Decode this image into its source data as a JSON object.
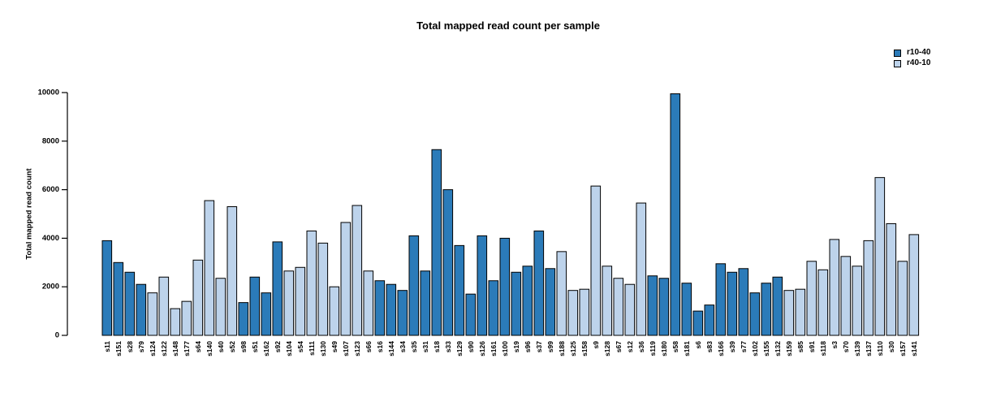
{
  "chart_data": {
    "type": "bar",
    "title": "Total mapped read count per sample",
    "xlabel": "",
    "ylabel": "Total mapped read count",
    "ylim": [
      0,
      10000
    ],
    "yticks": [
      0,
      2000,
      4000,
      6000,
      8000,
      10000
    ],
    "grid": false,
    "legend_position": "top-right",
    "bar_border_color": "#000000",
    "legend": [
      {
        "label": "r10-40",
        "color": "#2b7bb9"
      },
      {
        "label": "r40-10",
        "color": "#bdd3eb"
      }
    ],
    "samples": [
      {
        "label": "s11",
        "group": "r10-40",
        "value": 3900
      },
      {
        "label": "s151",
        "group": "r10-40",
        "value": 3000
      },
      {
        "label": "s28",
        "group": "r10-40",
        "value": 2600
      },
      {
        "label": "s79",
        "group": "r10-40",
        "value": 2100
      },
      {
        "label": "s124",
        "group": "r40-10",
        "value": 1750
      },
      {
        "label": "s122",
        "group": "r40-10",
        "value": 2400
      },
      {
        "label": "s148",
        "group": "r40-10",
        "value": 1100
      },
      {
        "label": "s177",
        "group": "r40-10",
        "value": 1400
      },
      {
        "label": "s64",
        "group": "r40-10",
        "value": 3100
      },
      {
        "label": "s140",
        "group": "r40-10",
        "value": 5550
      },
      {
        "label": "s40",
        "group": "r40-10",
        "value": 2350
      },
      {
        "label": "s52",
        "group": "r40-10",
        "value": 5300
      },
      {
        "label": "s98",
        "group": "r10-40",
        "value": 1350
      },
      {
        "label": "s51",
        "group": "r10-40",
        "value": 2400
      },
      {
        "label": "s162",
        "group": "r10-40",
        "value": 1750
      },
      {
        "label": "s92",
        "group": "r10-40",
        "value": 3850
      },
      {
        "label": "s104",
        "group": "r40-10",
        "value": 2650
      },
      {
        "label": "s54",
        "group": "r40-10",
        "value": 2800
      },
      {
        "label": "s111",
        "group": "r40-10",
        "value": 4300
      },
      {
        "label": "s130",
        "group": "r40-10",
        "value": 3800
      },
      {
        "label": "s49",
        "group": "r40-10",
        "value": 2000
      },
      {
        "label": "s107",
        "group": "r40-10",
        "value": 4650
      },
      {
        "label": "s123",
        "group": "r40-10",
        "value": 5350
      },
      {
        "label": "s66",
        "group": "r40-10",
        "value": 2650
      },
      {
        "label": "s16",
        "group": "r10-40",
        "value": 2250
      },
      {
        "label": "s144",
        "group": "r10-40",
        "value": 2100
      },
      {
        "label": "s34",
        "group": "r10-40",
        "value": 1850
      },
      {
        "label": "s35",
        "group": "r10-40",
        "value": 4100
      },
      {
        "label": "s31",
        "group": "r10-40",
        "value": 2650
      },
      {
        "label": "s18",
        "group": "r10-40",
        "value": 7650
      },
      {
        "label": "s33",
        "group": "r10-40",
        "value": 6000
      },
      {
        "label": "s129",
        "group": "r10-40",
        "value": 3700
      },
      {
        "label": "s90",
        "group": "r10-40",
        "value": 1700
      },
      {
        "label": "s126",
        "group": "r10-40",
        "value": 4100
      },
      {
        "label": "s161",
        "group": "r10-40",
        "value": 2250
      },
      {
        "label": "s100",
        "group": "r10-40",
        "value": 4000
      },
      {
        "label": "s19",
        "group": "r10-40",
        "value": 2600
      },
      {
        "label": "s96",
        "group": "r10-40",
        "value": 2850
      },
      {
        "label": "s37",
        "group": "r10-40",
        "value": 4300
      },
      {
        "label": "s99",
        "group": "r10-40",
        "value": 2750
      },
      {
        "label": "s188",
        "group": "r40-10",
        "value": 3450
      },
      {
        "label": "s125",
        "group": "r40-10",
        "value": 1850
      },
      {
        "label": "s158",
        "group": "r40-10",
        "value": 1900
      },
      {
        "label": "s9",
        "group": "r40-10",
        "value": 6150
      },
      {
        "label": "s128",
        "group": "r40-10",
        "value": 2850
      },
      {
        "label": "s67",
        "group": "r40-10",
        "value": 2350
      },
      {
        "label": "s12",
        "group": "r40-10",
        "value": 2100
      },
      {
        "label": "s36",
        "group": "r40-10",
        "value": 5450
      },
      {
        "label": "s119",
        "group": "r10-40",
        "value": 2450
      },
      {
        "label": "s180",
        "group": "r10-40",
        "value": 2350
      },
      {
        "label": "s58",
        "group": "r10-40",
        "value": 9950
      },
      {
        "label": "s181",
        "group": "r10-40",
        "value": 2150
      },
      {
        "label": "s6",
        "group": "r10-40",
        "value": 1000
      },
      {
        "label": "s83",
        "group": "r10-40",
        "value": 1250
      },
      {
        "label": "s166",
        "group": "r10-40",
        "value": 2950
      },
      {
        "label": "s39",
        "group": "r10-40",
        "value": 2600
      },
      {
        "label": "s77",
        "group": "r10-40",
        "value": 2750
      },
      {
        "label": "s102",
        "group": "r10-40",
        "value": 1750
      },
      {
        "label": "s155",
        "group": "r10-40",
        "value": 2150
      },
      {
        "label": "s132",
        "group": "r10-40",
        "value": 2400
      },
      {
        "label": "s159",
        "group": "r40-10",
        "value": 1850
      },
      {
        "label": "s85",
        "group": "r40-10",
        "value": 1900
      },
      {
        "label": "s91",
        "group": "r40-10",
        "value": 3050
      },
      {
        "label": "s118",
        "group": "r40-10",
        "value": 2700
      },
      {
        "label": "s3",
        "group": "r40-10",
        "value": 3950
      },
      {
        "label": "s70",
        "group": "r40-10",
        "value": 3250
      },
      {
        "label": "s139",
        "group": "r40-10",
        "value": 2850
      },
      {
        "label": "s137",
        "group": "r40-10",
        "value": 3900
      },
      {
        "label": "s110",
        "group": "r40-10",
        "value": 6500
      },
      {
        "label": "s30",
        "group": "r40-10",
        "value": 4600
      },
      {
        "label": "s157",
        "group": "r40-10",
        "value": 3050
      },
      {
        "label": "s141",
        "group": "r40-10",
        "value": 4150
      }
    ]
  }
}
